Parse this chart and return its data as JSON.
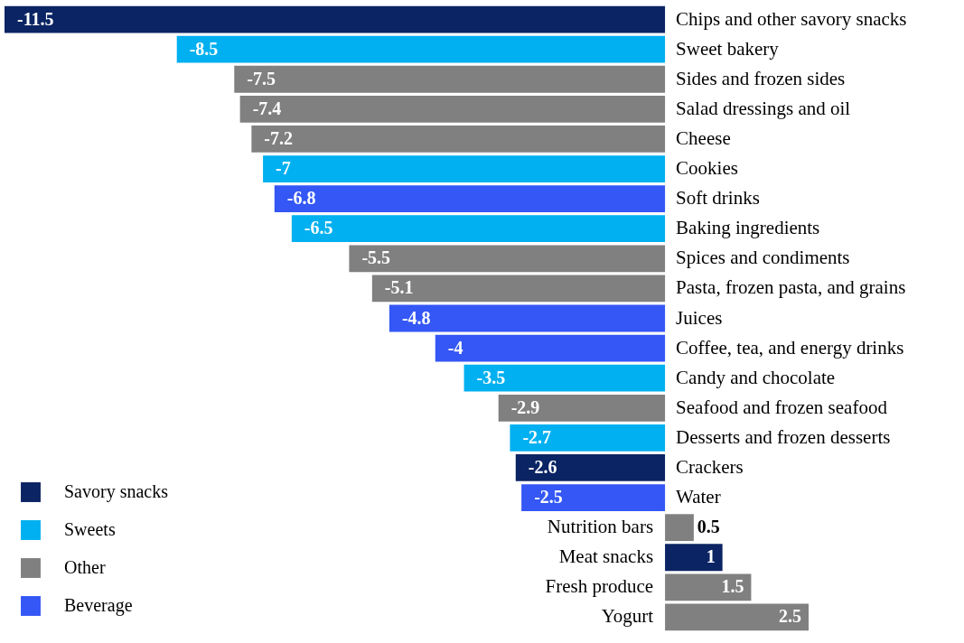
{
  "chart_data": {
    "type": "bar",
    "orientation": "horizontal",
    "data_labels": true,
    "legend": "bottom left",
    "categories": [
      "Chips and other savory snacks",
      "Sweet bakery",
      "Sides and frozen sides",
      "Salad dressings and oil",
      "Cheese",
      "Cookies",
      "Soft drinks",
      "Baking ingredients",
      "Spices and condiments",
      "Pasta, frozen pasta, and grains",
      "Juices",
      "Coffee, tea, and energy drinks",
      "Candy and chocolate",
      "Seafood and frozen seafood",
      "Desserts and frozen desserts",
      "Crackers",
      "Water",
      "Nutrition bars",
      "Meat snacks",
      "Fresh produce",
      "Yogurt"
    ],
    "series": [
      {
        "name": "Savory snacks",
        "color": "#0b2463",
        "values": [
          -11.5,
          null,
          null,
          null,
          null,
          null,
          null,
          null,
          null,
          null,
          null,
          null,
          null,
          null,
          null,
          -2.6,
          null,
          null,
          1,
          null,
          null
        ]
      },
      {
        "name": "Sweets",
        "color": "#00b0f0",
        "values": [
          null,
          -8.5,
          null,
          null,
          null,
          -7,
          null,
          -6.5,
          null,
          null,
          null,
          null,
          -3.5,
          null,
          -2.7,
          null,
          null,
          null,
          null,
          null,
          null
        ]
      },
      {
        "name": "Other",
        "color": "#808080",
        "values": [
          null,
          null,
          -7.5,
          -7.4,
          -7.2,
          null,
          null,
          null,
          -5.5,
          -5.1,
          null,
          null,
          null,
          -2.9,
          null,
          null,
          null,
          0.5,
          null,
          1.5,
          2.5
        ]
      },
      {
        "name": "Beverage",
        "color": "#3457f5",
        "values": [
          null,
          null,
          null,
          null,
          null,
          null,
          -6.8,
          null,
          null,
          null,
          -4.8,
          -4,
          null,
          null,
          null,
          null,
          -2.5,
          null,
          null,
          null,
          null
        ]
      }
    ]
  }
}
